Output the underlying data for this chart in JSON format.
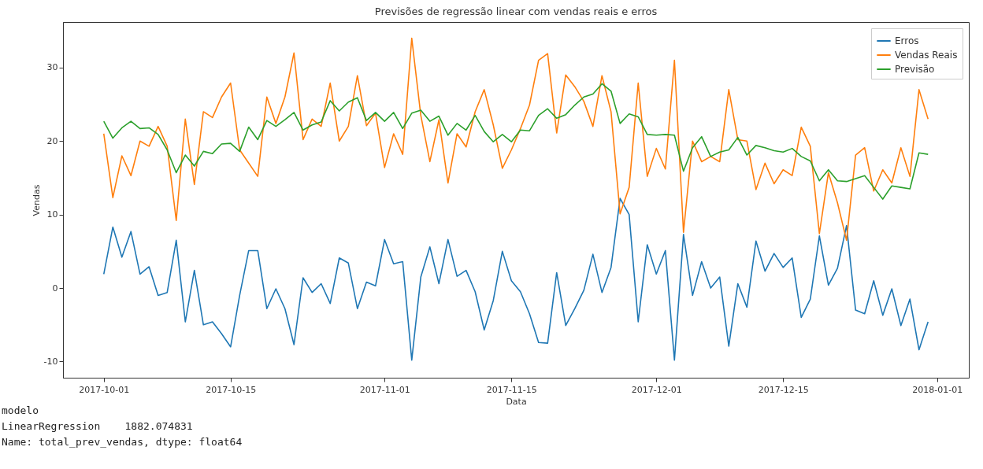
{
  "chart_data": {
    "type": "line",
    "title": "Previsões de regressão linear com vendas reais e erros",
    "xlabel": "Data",
    "ylabel": "Vendas",
    "x": [
      "2017-10-01",
      "2017-10-02",
      "2017-10-03",
      "2017-10-04",
      "2017-10-05",
      "2017-10-06",
      "2017-10-07",
      "2017-10-08",
      "2017-10-09",
      "2017-10-10",
      "2017-10-11",
      "2017-10-12",
      "2017-10-13",
      "2017-10-14",
      "2017-10-15",
      "2017-10-16",
      "2017-10-17",
      "2017-10-18",
      "2017-10-19",
      "2017-10-20",
      "2017-10-21",
      "2017-10-22",
      "2017-10-23",
      "2017-10-24",
      "2017-10-25",
      "2017-10-26",
      "2017-10-27",
      "2017-10-28",
      "2017-10-29",
      "2017-10-30",
      "2017-10-31",
      "2017-11-01",
      "2017-11-02",
      "2017-11-03",
      "2017-11-04",
      "2017-11-05",
      "2017-11-06",
      "2017-11-07",
      "2017-11-08",
      "2017-11-09",
      "2017-11-10",
      "2017-11-11",
      "2017-11-12",
      "2017-11-13",
      "2017-11-14",
      "2017-11-15",
      "2017-11-16",
      "2017-11-17",
      "2017-11-18",
      "2017-11-19",
      "2017-11-20",
      "2017-11-21",
      "2017-11-22",
      "2017-11-23",
      "2017-11-24",
      "2017-11-25",
      "2017-11-26",
      "2017-11-27",
      "2017-11-28",
      "2017-11-29",
      "2017-11-30",
      "2017-12-01",
      "2017-12-02",
      "2017-12-03",
      "2017-12-04",
      "2017-12-05",
      "2017-12-06",
      "2017-12-07",
      "2017-12-08",
      "2017-12-09",
      "2017-12-10",
      "2017-12-11",
      "2017-12-12",
      "2017-12-13",
      "2017-12-14",
      "2017-12-15",
      "2017-12-16",
      "2017-12-17",
      "2017-12-18",
      "2017-12-19",
      "2017-12-20",
      "2017-12-21",
      "2017-12-22",
      "2017-12-23",
      "2017-12-24",
      "2017-12-25",
      "2017-12-26",
      "2017-12-27",
      "2017-12-28",
      "2017-12-29",
      "2017-12-30",
      "2017-12-31"
    ],
    "series": [
      {
        "name": "Erros",
        "color": "#1f77b4",
        "values": [
          1.9,
          8.3,
          4.2,
          7.7,
          1.9,
          2.9,
          -1.0,
          -0.6,
          6.5,
          -4.6,
          2.4,
          -5.0,
          -4.6,
          -6.2,
          -8.0,
          -1.0,
          5.1,
          5.1,
          -2.8,
          -0.1,
          -2.8,
          -7.7,
          1.4,
          -0.6,
          0.6,
          -2.1,
          4.1,
          3.4,
          -2.8,
          0.8,
          0.3,
          6.6,
          3.3,
          3.6,
          -9.8,
          1.5,
          5.6,
          0.6,
          6.6,
          1.6,
          2.4,
          -0.5,
          -5.7,
          -1.7,
          5.0,
          1.0,
          -0.5,
          -3.5,
          -7.4,
          -7.5,
          2.1,
          -5.1,
          -2.8,
          -0.3,
          4.6,
          -0.6,
          2.8,
          12.2,
          10.0,
          -4.6,
          5.9,
          1.9,
          5.1,
          -9.8,
          7.3,
          -1.0,
          3.6,
          0.0,
          1.5,
          -7.9,
          0.6,
          -2.6,
          6.4,
          2.3,
          4.7,
          2.8,
          4.1,
          -4.0,
          -1.5,
          7.1,
          0.4,
          2.7,
          8.5,
          -3.0,
          -3.5,
          1.0,
          -3.7,
          -0.1,
          -5.1,
          -1.5,
          -8.4,
          -4.6
        ]
      },
      {
        "name": "Vendas Reais",
        "color": "#ff7f0e",
        "values": [
          21.0,
          12.3,
          18.0,
          15.3,
          20.0,
          19.3,
          22.0,
          19.3,
          9.2,
          23.0,
          14.1,
          24.0,
          23.2,
          26.0,
          27.9,
          18.8,
          17.0,
          15.2,
          26.0,
          22.4,
          26.0,
          32.0,
          20.2,
          23.0,
          22.0,
          27.9,
          20.0,
          22.0,
          28.9,
          22.1,
          23.8,
          16.4,
          21.0,
          18.2,
          34.0,
          23.5,
          17.2,
          22.9,
          14.3,
          21.0,
          19.2,
          24.0,
          27.0,
          22.2,
          16.3,
          18.8,
          21.7,
          24.9,
          31.0,
          31.9,
          21.1,
          29.0,
          27.4,
          25.4,
          22.0,
          28.9,
          24.0,
          10.1,
          13.7,
          27.9,
          15.2,
          19.0,
          16.2,
          31.0,
          7.6,
          20.0,
          17.2,
          17.9,
          17.2,
          27.0,
          20.2,
          20.0,
          13.4,
          17.0,
          14.2,
          16.1,
          15.3,
          21.9,
          19.3,
          7.4,
          15.7,
          11.6,
          6.5,
          18.1,
          19.1,
          13.2,
          16.1,
          14.3,
          19.1,
          15.2,
          27.0,
          23.0
        ]
      },
      {
        "name": "Previsão",
        "color": "#2ca02c",
        "values": [
          22.7,
          20.4,
          21.8,
          22.7,
          21.7,
          21.8,
          20.9,
          18.8,
          15.7,
          18.1,
          16.6,
          18.6,
          18.3,
          19.6,
          19.7,
          18.6,
          21.9,
          20.2,
          22.8,
          22.0,
          22.9,
          23.9,
          21.5,
          22.2,
          22.6,
          25.5,
          24.1,
          25.3,
          25.9,
          22.8,
          23.9,
          22.7,
          23.9,
          21.7,
          23.8,
          24.2,
          22.7,
          23.4,
          20.8,
          22.4,
          21.5,
          23.5,
          21.3,
          19.9,
          20.9,
          19.9,
          21.5,
          21.4,
          23.5,
          24.4,
          23.1,
          23.6,
          24.9,
          26.0,
          26.4,
          27.8,
          26.8,
          22.4,
          23.7,
          23.3,
          20.9,
          20.8,
          20.9,
          20.8,
          15.9,
          19.1,
          20.6,
          17.9,
          18.5,
          18.8,
          20.5,
          18.1,
          19.4,
          19.1,
          18.7,
          18.5,
          19.0,
          17.9,
          17.3,
          14.6,
          16.1,
          14.6,
          14.5,
          14.9,
          15.3,
          13.7,
          12.1,
          13.9,
          13.7,
          13.5,
          18.4,
          18.2
        ]
      }
    ],
    "xlim": [
      "2017-09-26T12:00",
      "2018-01-04T12:00"
    ],
    "xticks": [
      "2017-10-01",
      "2017-10-15",
      "2017-11-01",
      "2017-11-15",
      "2017-12-01",
      "2017-12-15",
      "2018-01-01"
    ],
    "ylim": [
      -12.2,
      36.2
    ],
    "yticks": [
      -10,
      0,
      10,
      20,
      30
    ],
    "grid": false,
    "legend": "top right",
    "annotations": [
      "modelo",
      "LinearRegression    1882.074831",
      "Name: total_prev_vendas, dtype: float64"
    ]
  }
}
